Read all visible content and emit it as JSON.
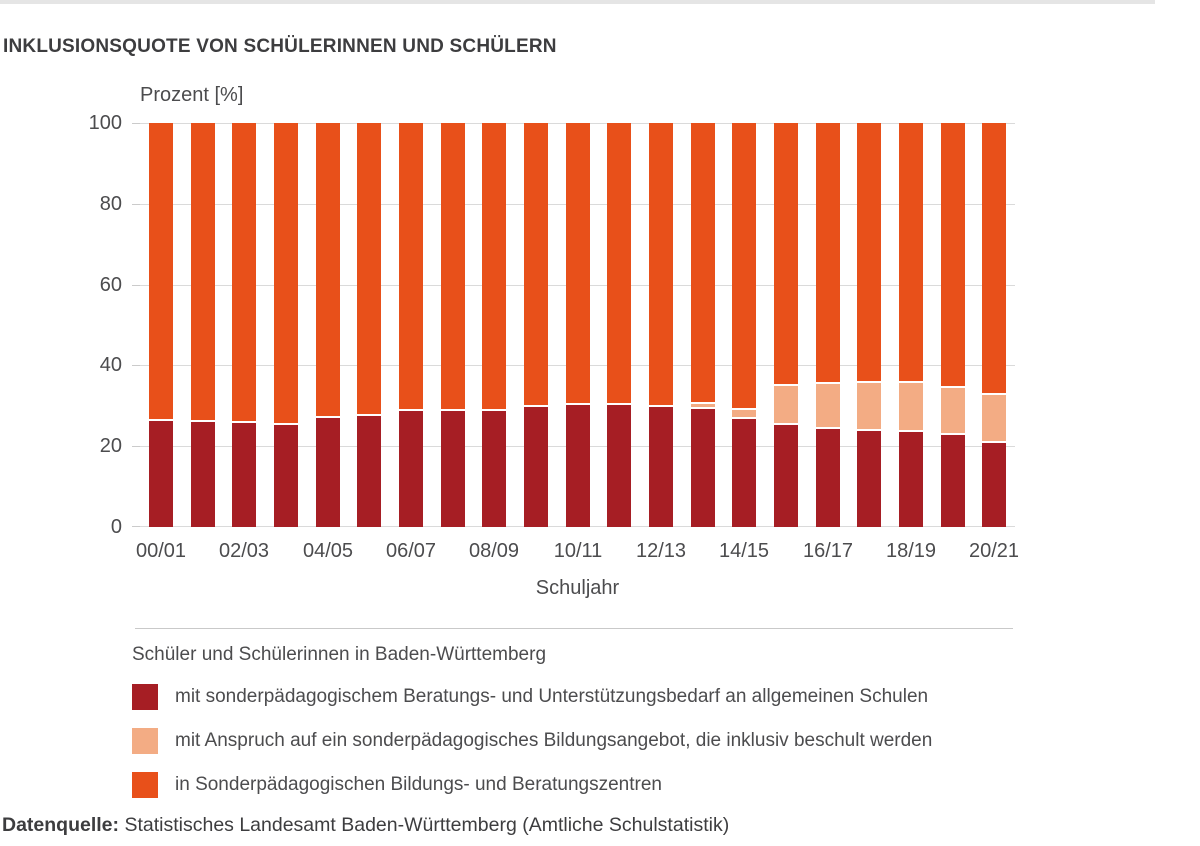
{
  "page": {
    "source_label": "Datenquelle:",
    "source_text": " Statistisches Landesamt Baden-Württemberg (Amtliche Schulstatistik)"
  },
  "legend": {
    "title": "Schüler und Schülerinnen in Baden-Württemberg",
    "items": [
      {
        "label": "mit sonderpädagogischem Beratungs- und Unterstützungsbedarf an allgemeinen Schulen",
        "color": "#A61E24"
      },
      {
        "label": "mit Anspruch auf ein sonderpädagogisches Bildungsangebot, die inklusiv beschult werden",
        "color": "#F3AC84"
      },
      {
        "label": "in Sonderpädagogischen Bildungs- und Beratungszentren",
        "color": "#E8501A"
      }
    ]
  },
  "chart_data": {
    "type": "bar",
    "stacked": true,
    "title": "INKLUSIONSQUOTE VON SCHÜLERINNEN UND SCHÜLERN",
    "ylabel": "Prozent [%]",
    "xlabel": "Schuljahr",
    "ylim": [
      0,
      100
    ],
    "yticks": [
      0,
      20,
      40,
      60,
      80,
      100
    ],
    "grid": true,
    "legend_position": "bottom",
    "xtick_label_every": 2,
    "categories": [
      "00/01",
      "01/02",
      "02/03",
      "03/04",
      "04/05",
      "05/06",
      "06/07",
      "07/08",
      "08/09",
      "09/10",
      "10/11",
      "11/12",
      "12/13",
      "13/14",
      "14/15",
      "15/16",
      "16/17",
      "17/18",
      "18/19",
      "19/20",
      "20/21"
    ],
    "series": [
      {
        "name": "mit sonderpädagogischem Beratungs- und Unterstützungsbedarf an allgemeinen Schulen",
        "color": "#A61E24",
        "values": [
          26.3,
          25.9,
          25.7,
          25.2,
          27.0,
          27.4,
          28.6,
          28.7,
          28.7,
          29.6,
          30.2,
          30.2,
          29.8,
          29.3,
          26.8,
          25.2,
          24.3,
          23.8,
          23.5,
          22.7,
          20.7
        ]
      },
      {
        "name": "mit Anspruch auf ein sonderpädagogisches Bildungsangebot, die inklusiv beschult werden",
        "color": "#F3AC84",
        "values": [
          0,
          0,
          0,
          0,
          0,
          0,
          0,
          0,
          0,
          0,
          0,
          0,
          0,
          1.2,
          2.2,
          9.7,
          11.0,
          11.9,
          12.1,
          11.6,
          11.9
        ]
      },
      {
        "name": "in Sonderpädagogischen Bildungs- und Beratungszentren",
        "color": "#E8501A",
        "values": [
          73.7,
          74.1,
          74.3,
          74.8,
          73.0,
          72.6,
          71.4,
          71.3,
          71.3,
          70.4,
          69.8,
          69.8,
          70.2,
          69.5,
          71.0,
          65.1,
          64.7,
          64.3,
          64.4,
          65.7,
          67.4
        ]
      }
    ]
  }
}
